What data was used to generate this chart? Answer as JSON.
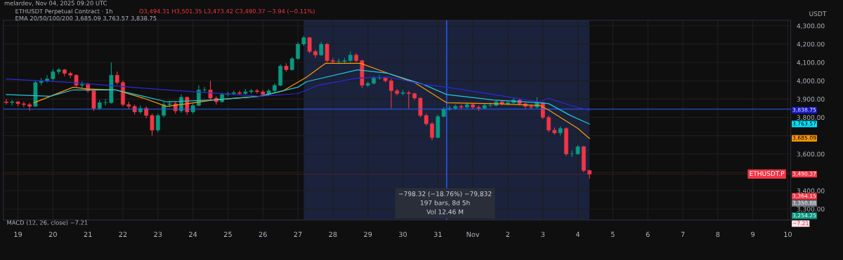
{
  "chart_data": {
    "type": "candlestick",
    "title": "ETHUSDT Perpetual Contract · 1h",
    "subtitle": "O3,494.31 H3,501.35 L3,473.42 C3,490.37 −3.94 (−0.11%)",
    "ylabel": "USDT",
    "annotations": [
      "melardev, Nov 04, 2025 09:20 UTC",
      "EMA 20/50/100/200 3,685.09 3,763.57 3,838.75",
      "MACD (12, 26, close) −7.21",
      "−798.32 (−18.76%) −79,832\n197 bars, 8d 5h\nVol 12.46 M",
      "3,364.15",
      "3,350.88",
      "3,254.25",
      "−7.21",
      "3,838.75",
      "3,763.57",
      "3,685.09",
      "3,490.37"
    ],
    "x": [
      "2025-10-18T16:00",
      "2025-10-18T20:00",
      "2025-10-19T00:00",
      "2025-10-19T04:00",
      "2025-10-19T08:00",
      "2025-10-19T12:00",
      "2025-10-19T16:00",
      "2025-10-19T20:00",
      "2025-10-20T00:00",
      "2025-10-20T04:00",
      "2025-10-20T08:00",
      "2025-10-20T12:00",
      "2025-10-20T16:00",
      "2025-10-20T20:00",
      "2025-10-21T00:00",
      "2025-10-21T04:00",
      "2025-10-21T08:00",
      "2025-10-21T12:00",
      "2025-10-21T16:00",
      "2025-10-21T20:00",
      "2025-10-22T00:00",
      "2025-10-22T04:00",
      "2025-10-22T08:00",
      "2025-10-22T12:00",
      "2025-10-22T16:00",
      "2025-10-22T20:00",
      "2025-10-23T00:00",
      "2025-10-23T04:00",
      "2025-10-23T08:00",
      "2025-10-23T12:00",
      "2025-10-23T16:00",
      "2025-10-23T20:00",
      "2025-10-24T00:00",
      "2025-10-24T04:00",
      "2025-10-24T08:00",
      "2025-10-24T12:00",
      "2025-10-24T16:00",
      "2025-10-24T20:00",
      "2025-10-25T00:00",
      "2025-10-25T04:00",
      "2025-10-25T08:00",
      "2025-10-25T12:00",
      "2025-10-25T16:00",
      "2025-10-25T20:00",
      "2025-10-26T00:00",
      "2025-10-26T04:00",
      "2025-10-26T08:00",
      "2025-10-26T12:00",
      "2025-10-26T16:00",
      "2025-10-26T20:00",
      "2025-10-27T00:00",
      "2025-10-27T04:00",
      "2025-10-27T08:00",
      "2025-10-27T12:00",
      "2025-10-27T16:00",
      "2025-10-27T20:00",
      "2025-10-28T00:00",
      "2025-10-28T04:00",
      "2025-10-28T08:00",
      "2025-10-28T12:00",
      "2025-10-28T16:00",
      "2025-10-28T20:00",
      "2025-10-29T00:00",
      "2025-10-29T04:00",
      "2025-10-29T08:00",
      "2025-10-29T12:00",
      "2025-10-29T16:00",
      "2025-10-29T20:00",
      "2025-10-30T00:00",
      "2025-10-30T04:00",
      "2025-10-30T08:00",
      "2025-10-30T12:00",
      "2025-10-30T16:00",
      "2025-10-30T20:00",
      "2025-10-31T00:00",
      "2025-10-31T04:00",
      "2025-10-31T08:00",
      "2025-10-31T12:00",
      "2025-10-31T16:00",
      "2025-10-31T20:00",
      "2025-11-01T00:00",
      "2025-11-01T04:00",
      "2025-11-01T08:00",
      "2025-11-01T12:00",
      "2025-11-01T16:00",
      "2025-11-01T20:00",
      "2025-11-02T00:00",
      "2025-11-02T04:00",
      "2025-11-02T08:00",
      "2025-11-02T12:00",
      "2025-11-02T16:00",
      "2025-11-02T20:00",
      "2025-11-03T00:00",
      "2025-11-03T04:00",
      "2025-11-03T08:00",
      "2025-11-03T12:00",
      "2025-11-03T16:00",
      "2025-11-03T20:00",
      "2025-11-04T00:00",
      "2025-11-04T04:00",
      "2025-11-04T08:00"
    ],
    "ohlc": [
      [
        3885,
        3900,
        3870,
        3880
      ],
      [
        3880,
        3895,
        3865,
        3885
      ],
      [
        3885,
        3890,
        3860,
        3875
      ],
      [
        3875,
        3885,
        3855,
        3870
      ],
      [
        3870,
        3880,
        3835,
        3860
      ],
      [
        3860,
        4000,
        3855,
        3990
      ],
      [
        3990,
        4015,
        3975,
        4000
      ],
      [
        4000,
        4030,
        3990,
        4010
      ],
      [
        4010,
        4065,
        4000,
        4050
      ],
      [
        4050,
        4070,
        4035,
        4060
      ],
      [
        4060,
        4065,
        4025,
        4040
      ],
      [
        4040,
        4050,
        4015,
        4030
      ],
      [
        4030,
        4035,
        3965,
        3975
      ],
      [
        3975,
        3995,
        3960,
        3980
      ],
      [
        3980,
        3990,
        3935,
        3945
      ],
      [
        3945,
        3955,
        3835,
        3850
      ],
      [
        3850,
        3895,
        3840,
        3880
      ],
      [
        3880,
        3900,
        3865,
        3880
      ],
      [
        3880,
        4100,
        3875,
        4030
      ],
      [
        4030,
        4050,
        3980,
        3990
      ],
      [
        3990,
        4000,
        3860,
        3870
      ],
      [
        3870,
        3885,
        3845,
        3860
      ],
      [
        3860,
        3870,
        3815,
        3830
      ],
      [
        3830,
        3865,
        3820,
        3850
      ],
      [
        3850,
        3860,
        3795,
        3810
      ],
      [
        3810,
        3820,
        3700,
        3730
      ],
      [
        3730,
        3820,
        3720,
        3810
      ],
      [
        3810,
        3885,
        3800,
        3870
      ],
      [
        3870,
        3890,
        3855,
        3875
      ],
      [
        3875,
        3885,
        3820,
        3835
      ],
      [
        3835,
        3925,
        3825,
        3910
      ],
      [
        3910,
        3915,
        3815,
        3830
      ],
      [
        3830,
        3875,
        3820,
        3865
      ],
      [
        3865,
        3975,
        3860,
        3950
      ],
      [
        3950,
        3965,
        3935,
        3950
      ],
      [
        3950,
        4000,
        3895,
        3905
      ],
      [
        3905,
        3915,
        3870,
        3885
      ],
      [
        3885,
        3935,
        3880,
        3925
      ],
      [
        3925,
        3940,
        3915,
        3930
      ],
      [
        3930,
        3945,
        3920,
        3935
      ],
      [
        3935,
        3945,
        3920,
        3930
      ],
      [
        3930,
        3955,
        3925,
        3940
      ],
      [
        3940,
        3955,
        3930,
        3945
      ],
      [
        3945,
        3955,
        3930,
        3940
      ],
      [
        3940,
        3950,
        3915,
        3925
      ],
      [
        3925,
        3955,
        3920,
        3945
      ],
      [
        3945,
        3985,
        3935,
        3975
      ],
      [
        3975,
        4090,
        3970,
        4080
      ],
      [
        4080,
        4095,
        4050,
        4060
      ],
      [
        4060,
        4130,
        4055,
        4120
      ],
      [
        4120,
        4210,
        4115,
        4200
      ],
      [
        4200,
        4245,
        4190,
        4235
      ],
      [
        4235,
        4240,
        4150,
        4160
      ],
      [
        4160,
        4170,
        4125,
        4140
      ],
      [
        4140,
        4212,
        4135,
        4200
      ],
      [
        4200,
        4205,
        4100,
        4110
      ],
      [
        4110,
        4125,
        4095,
        4105
      ],
      [
        4105,
        4120,
        4090,
        4105
      ],
      [
        4105,
        4125,
        4095,
        4110
      ],
      [
        4110,
        4160,
        4100,
        4140
      ],
      [
        4140,
        4150,
        4100,
        4110
      ],
      [
        4110,
        4115,
        3960,
        3975
      ],
      [
        3975,
        3995,
        3965,
        3985
      ],
      [
        3985,
        4025,
        3980,
        4015
      ],
      [
        4015,
        4030,
        4005,
        4015
      ],
      [
        4015,
        4020,
        3990,
        4000
      ],
      [
        4000,
        4010,
        3850,
        3945
      ],
      [
        3945,
        3955,
        3920,
        3930
      ],
      [
        3930,
        3950,
        3920,
        3935
      ],
      [
        3935,
        3945,
        3850,
        3930
      ],
      [
        3930,
        3935,
        3895,
        3905
      ],
      [
        3905,
        3910,
        3800,
        3810
      ],
      [
        3810,
        3820,
        3755,
        3765
      ],
      [
        3765,
        3775,
        3675,
        3690
      ],
      [
        3690,
        3815,
        3685,
        3805
      ],
      [
        3805,
        3855,
        3800,
        3845
      ],
      [
        3845,
        3865,
        3835,
        3850
      ],
      [
        3850,
        3870,
        3840,
        3860
      ],
      [
        3860,
        3870,
        3845,
        3855
      ],
      [
        3855,
        3880,
        3850,
        3870
      ],
      [
        3870,
        3875,
        3845,
        3855
      ],
      [
        3855,
        3865,
        3835,
        3850
      ],
      [
        3850,
        3875,
        3845,
        3865
      ],
      [
        3865,
        3880,
        3855,
        3865
      ],
      [
        3865,
        3895,
        3860,
        3885
      ],
      [
        3885,
        3890,
        3865,
        3875
      ],
      [
        3875,
        3890,
        3865,
        3880
      ],
      [
        3880,
        3905,
        3875,
        3895
      ],
      [
        3895,
        3900,
        3865,
        3875
      ],
      [
        3875,
        3880,
        3850,
        3860
      ],
      [
        3860,
        3870,
        3845,
        3855
      ],
      [
        3855,
        3910,
        3850,
        3880
      ],
      [
        3880,
        3885,
        3790,
        3800
      ],
      [
        3800,
        3810,
        3720,
        3730
      ],
      [
        3730,
        3745,
        3705,
        3715
      ],
      [
        3715,
        3750,
        3700,
        3740
      ],
      [
        3740,
        3745,
        3590,
        3600
      ],
      [
        3600,
        3620,
        3585,
        3600
      ],
      [
        3600,
        3650,
        3595,
        3640
      ],
      [
        3640,
        3645,
        3500,
        3510
      ],
      [
        3510,
        3515,
        3465,
        3490.37
      ]
    ],
    "colors": [
      "#f23645",
      "#089981",
      "#f23645",
      "#f23645",
      "#f23645",
      "#089981",
      "#089981",
      "#089981",
      "#089981",
      "#089981",
      "#f23645",
      "#f23645",
      "#f23645",
      "#089981",
      "#f23645",
      "#f23645",
      "#089981",
      "#089981",
      "#089981",
      "#f23645",
      "#f23645",
      "#f23645",
      "#f23645",
      "#089981",
      "#f23645",
      "#f23645",
      "#089981",
      "#089981",
      "#089981",
      "#f23645",
      "#089981",
      "#f23645",
      "#089981",
      "#089981",
      "#089981",
      "#f23645",
      "#f23645",
      "#089981",
      "#089981",
      "#089981",
      "#f23645",
      "#089981",
      "#089981",
      "#f23645",
      "#f23645",
      "#089981",
      "#089981",
      "#089981",
      "#f23645",
      "#089981",
      "#089981",
      "#089981",
      "#f23645",
      "#f23645",
      "#089981",
      "#f23645",
      "#f23645",
      "#089981",
      "#089981",
      "#089981",
      "#f23645",
      "#f23645",
      "#089981",
      "#089981",
      "#089981",
      "#f23645",
      "#f23645",
      "#f23645",
      "#089981",
      "#f23645",
      "#f23645",
      "#f23645",
      "#f23645",
      "#f23645",
      "#089981",
      "#089981",
      "#089981",
      "#089981",
      "#f23645",
      "#089981",
      "#f23645",
      "#f23645",
      "#089981",
      "#089981",
      "#089981",
      "#f23645",
      "#089981",
      "#089981",
      "#f23645",
      "#f23645",
      "#f23645",
      "#089981",
      "#f23645",
      "#f23645",
      "#f23645",
      "#089981",
      "#f23645",
      "#089981",
      "#089981",
      "#f23645",
      "#f23645"
    ],
    "series": [
      {
        "type": "line",
        "color": "#ff9800",
        "x": [
          "2025-10-19T11:00",
          "2025-10-20T14:00",
          "2025-10-20T23:00",
          "2025-10-21T19:00",
          "2025-10-22T14:00",
          "2025-10-23T06:00",
          "2025-10-24T01:00",
          "2025-10-24T14:00",
          "2025-10-25T22:00",
          "2025-10-26T14:00",
          "2025-10-27T06:00",
          "2025-10-27T19:00",
          "2025-10-28T19:00",
          "2025-10-29T14:00",
          "2025-10-30T08:00",
          "2025-10-31T06:00",
          "2025-11-01T14:00",
          "2025-11-02T22:00",
          "2025-11-03T04:00",
          "2025-11-04T00:00",
          "2025-11-04T08:00"
        ],
        "values": [
          3880,
          3965,
          3955,
          3950,
          3905,
          3860,
          3880,
          3895,
          3915,
          3945,
          4020,
          4095,
          4095,
          4040,
          3990,
          3880,
          3875,
          3865,
          3840,
          3740,
          3685.09
        ]
      },
      {
        "type": "line",
        "color": "#26c6da",
        "x": [
          "2025-10-18T16:00",
          "2025-10-19T22:00",
          "2025-10-20T14:00",
          "2025-10-21T19:00",
          "2025-10-22T14:00",
          "2025-10-23T06:00",
          "2025-10-24T14:00",
          "2025-10-25T22:00",
          "2025-10-27T00:00",
          "2025-10-27T06:00",
          "2025-10-28T17:00",
          "2025-10-29T14:00",
          "2025-10-30T14:00",
          "2025-10-31T06:00",
          "2025-11-01T14:00",
          "2025-11-02T22:00",
          "2025-11-03T04:00",
          "2025-11-03T19:00",
          "2025-11-04T08:00"
        ],
        "values": [
          3925,
          3915,
          3950,
          3950,
          3915,
          3885,
          3895,
          3915,
          3965,
          3995,
          4060,
          4040,
          3980,
          3925,
          3895,
          3880,
          3875,
          3810,
          3763.57
        ]
      },
      {
        "type": "line",
        "color": "#2a2ad8",
        "x": [
          "2025-10-18T16:00",
          "2025-10-20T14:00",
          "2025-10-23T06:00",
          "2025-10-25T22:00",
          "2025-10-27T00:00",
          "2025-10-27T14:00",
          "2025-10-28T17:00",
          "2025-10-29T14:00",
          "2025-10-30T14:00",
          "2025-10-31T06:00",
          "2025-11-01T14:00",
          "2025-11-02T22:00",
          "2025-11-03T04:00",
          "2025-11-03T19:00",
          "2025-11-04T08:00"
        ],
        "values": [
          4010,
          3990,
          3950,
          3915,
          3930,
          3975,
          4015,
          4020,
          3980,
          3965,
          3925,
          3885,
          3905,
          3865,
          3838.75
        ]
      }
    ],
    "bands": [
      {
        "axis": "x",
        "from": "2025-10-27T04:00",
        "to": "2025-11-04T08:00",
        "color": "#1c2541"
      }
    ],
    "ref_lines": [
      {
        "axis": "x",
        "value": "2025-10-31T06:00",
        "color": "#2962ff",
        "line_style": "solid"
      },
      {
        "axis": "y",
        "value": 3845,
        "color": "#2962ff",
        "line_style": "solid"
      },
      {
        "axis": "y",
        "value": 3490.37,
        "label": "ETHUSDT.P",
        "color": "#f23645",
        "line_style": "dotted"
      }
    ],
    "xlim": [
      "2025-10-18T14:00",
      "2025-11-10T02:00"
    ],
    "xticks": [
      {
        "value": "2025-10-19",
        "label": "19"
      },
      {
        "value": "2025-10-20",
        "label": "20"
      },
      {
        "value": "2025-10-21",
        "label": "21"
      },
      {
        "value": "2025-10-22",
        "label": "22"
      },
      {
        "value": "2025-10-23",
        "label": "23"
      },
      {
        "value": "2025-10-24",
        "label": "24"
      },
      {
        "value": "2025-10-25",
        "label": "25"
      },
      {
        "value": "2025-10-26",
        "label": "26"
      },
      {
        "value": "2025-10-27",
        "label": "27"
      },
      {
        "value": "2025-10-28",
        "label": "28"
      },
      {
        "value": "2025-10-29",
        "label": "29"
      },
      {
        "value": "2025-10-30",
        "label": "30"
      },
      {
        "value": "2025-10-31",
        "label": "31"
      },
      {
        "value": "2025-11-01",
        "label": "Nov"
      },
      {
        "value": "2025-11-02",
        "label": "2"
      },
      {
        "value": "2025-11-03",
        "label": "3"
      },
      {
        "value": "2025-11-04",
        "label": "4"
      },
      {
        "value": "2025-11-05",
        "label": "5"
      },
      {
        "value": "2025-11-06",
        "label": "6"
      },
      {
        "value": "2025-11-07",
        "label": "7"
      },
      {
        "value": "2025-11-08",
        "label": "8"
      },
      {
        "value": "2025-11-09",
        "label": "9"
      },
      {
        "value": "2025-11-10",
        "label": "10"
      }
    ],
    "ylim": [
      3240,
      4330
    ],
    "yticks": [
      {
        "value": 3300,
        "label": "3,300.00"
      },
      {
        "value": 3400,
        "label": "3,400.00"
      },
      {
        "value": 3500,
        "label": null
      },
      {
        "value": 3600,
        "label": "3,600.00"
      },
      {
        "value": 3700,
        "label": null
      },
      {
        "value": 3800,
        "label": "3,800.00"
      },
      {
        "value": 3900,
        "label": "3,900.00"
      },
      {
        "value": 4000,
        "label": "4,000.00"
      },
      {
        "value": 4100,
        "label": "4,100.00"
      },
      {
        "value": 4200,
        "label": "4,200.00"
      },
      {
        "value": 4300,
        "label": "4,300.00"
      }
    ],
    "grid": true,
    "legend": false
  }
}
